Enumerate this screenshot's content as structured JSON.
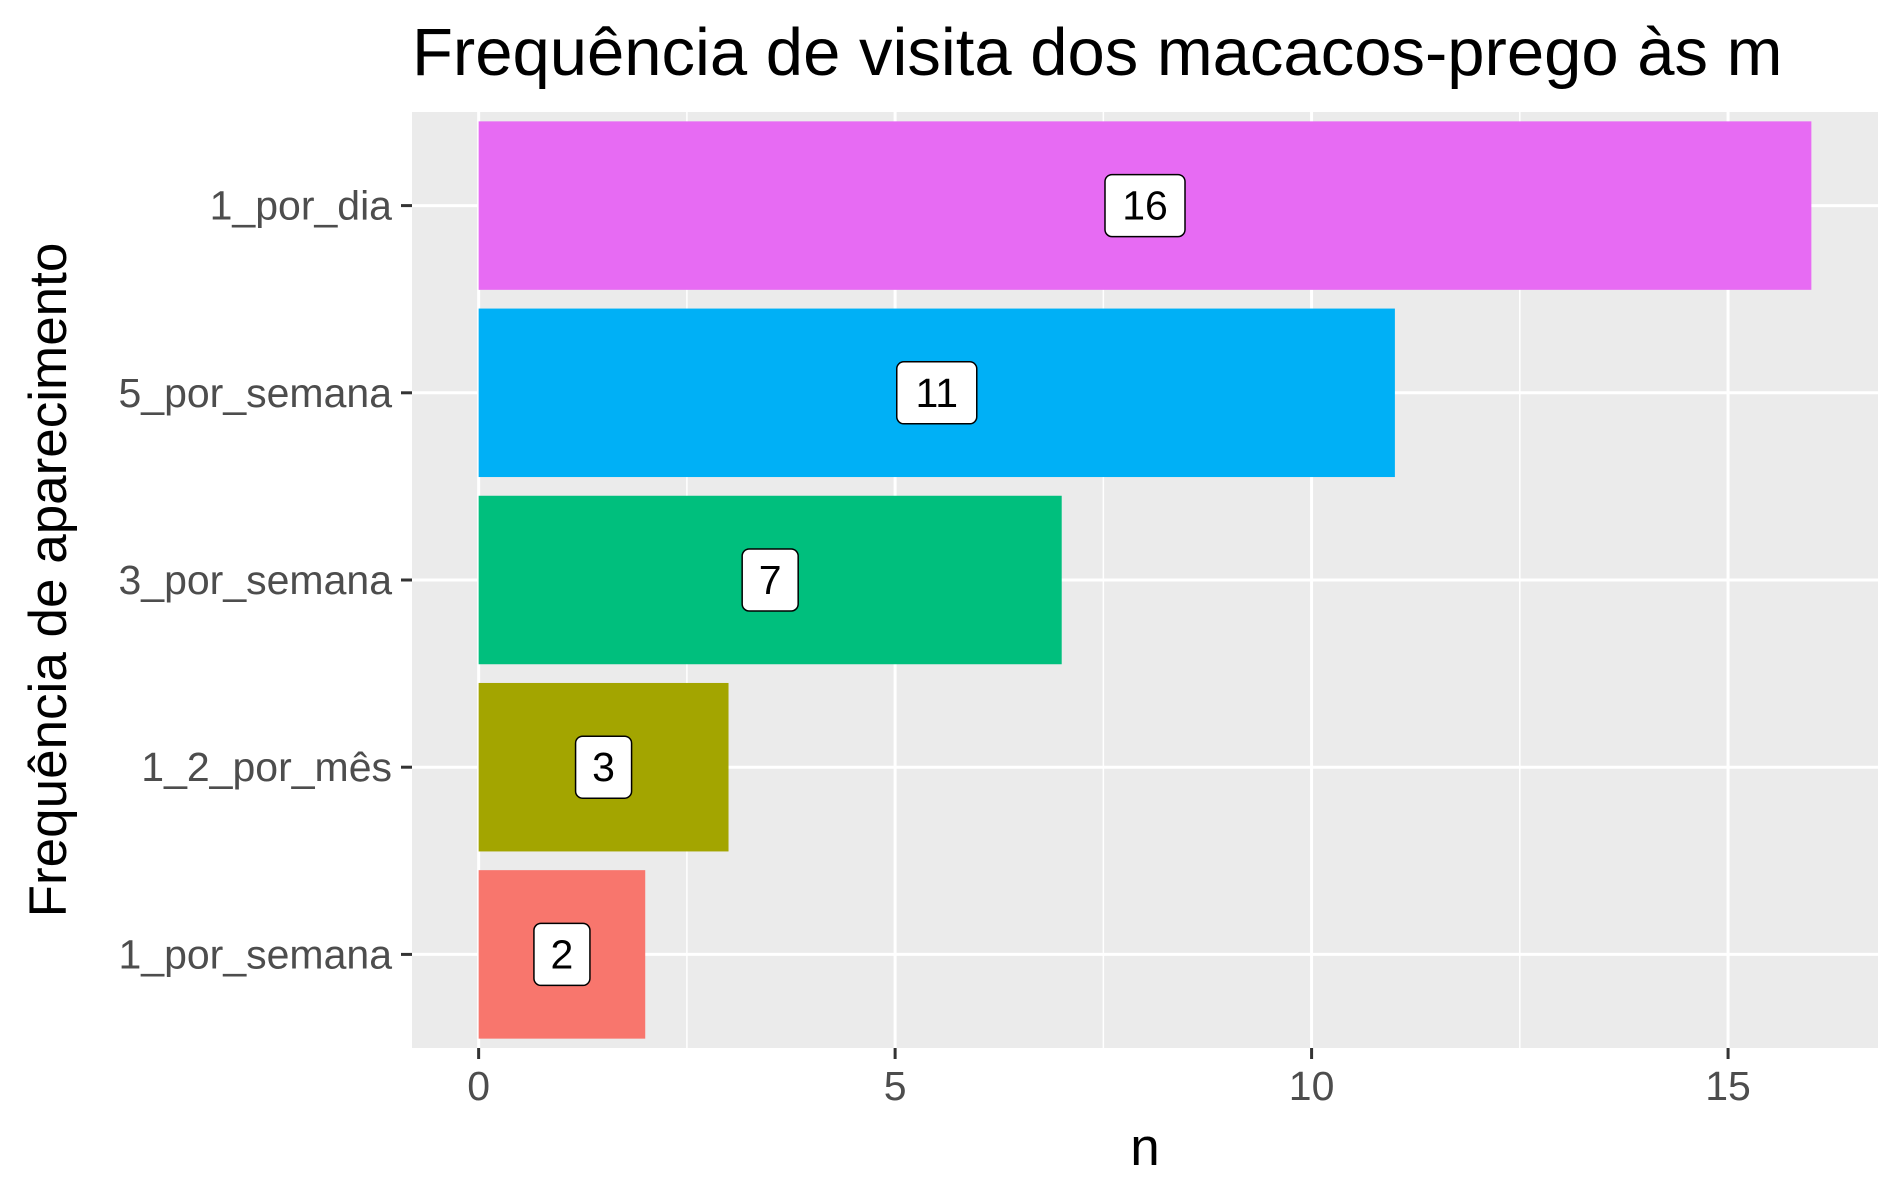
{
  "chart_data": {
    "type": "bar",
    "orientation": "horizontal",
    "title": "Frequência de visita dos macacos-prego às m",
    "xlabel": "n",
    "ylabel": "Frequência de aparecimento",
    "categories": [
      "1_por_dia",
      "5_por_semana",
      "3_por_semana",
      "1_2_por_mês",
      "1_por_semana"
    ],
    "values": [
      16,
      11,
      7,
      3,
      2
    ],
    "data_labels": [
      "16",
      "11",
      "7",
      "3",
      "2"
    ],
    "colors": [
      "#E76BF3",
      "#00B0F6",
      "#00BF7D",
      "#A3A500",
      "#F8766D"
    ],
    "xlim": [
      -0.8,
      16.8
    ],
    "x_ticks": [
      0,
      5,
      10,
      15
    ],
    "x_tick_labels": [
      "0",
      "5",
      "10",
      "15"
    ],
    "grid": true,
    "panel_background": "#EBEBEB",
    "grid_color": "#FFFFFF",
    "legend": "none"
  }
}
